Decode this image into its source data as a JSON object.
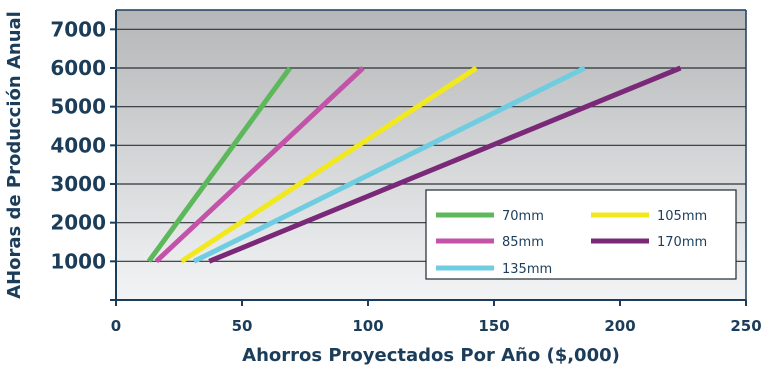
{
  "chart_data": {
    "type": "line",
    "title": "",
    "xlabel": "Ahorros Proyectados Por Año ($,000)",
    "ylabel": "AHoras de Producción Anual",
    "xlim": [
      0,
      250
    ],
    "ylim": [
      0,
      7500
    ],
    "x_ticks": [
      0,
      50,
      100,
      150,
      200,
      250
    ],
    "y_ticks": [
      1000,
      2000,
      3000,
      4000,
      5000,
      6000,
      7000
    ],
    "grid": true,
    "legend_position": "bottom-right",
    "background": "gray gradient",
    "series": [
      {
        "name": "70mm",
        "color": "#5cb85a",
        "points": [
          [
            13,
            1000
          ],
          [
            69,
            6000
          ]
        ]
      },
      {
        "name": "85mm",
        "color": "#c253a8",
        "points": [
          [
            16,
            1000
          ],
          [
            98,
            6000
          ]
        ]
      },
      {
        "name": "105mm",
        "color": "#f2e81e",
        "points": [
          [
            26,
            1000
          ],
          [
            143,
            6000
          ]
        ]
      },
      {
        "name": "135mm",
        "color": "#6ecde0",
        "points": [
          [
            31,
            1000
          ],
          [
            186,
            6000
          ]
        ]
      },
      {
        "name": "170mm",
        "color": "#7a2878",
        "points": [
          [
            37,
            1000
          ],
          [
            224,
            6000
          ]
        ]
      }
    ],
    "legend_layout": [
      [
        "70mm",
        "105mm"
      ],
      [
        "85mm",
        "170mm"
      ],
      [
        "135mm"
      ]
    ]
  },
  "colors": {
    "text": "#1c3d5a",
    "axis": "#1c3d5a",
    "grid": "#2e3338",
    "plot_top": "#b4b6b8",
    "plot_bottom": "#f3f4f5"
  }
}
